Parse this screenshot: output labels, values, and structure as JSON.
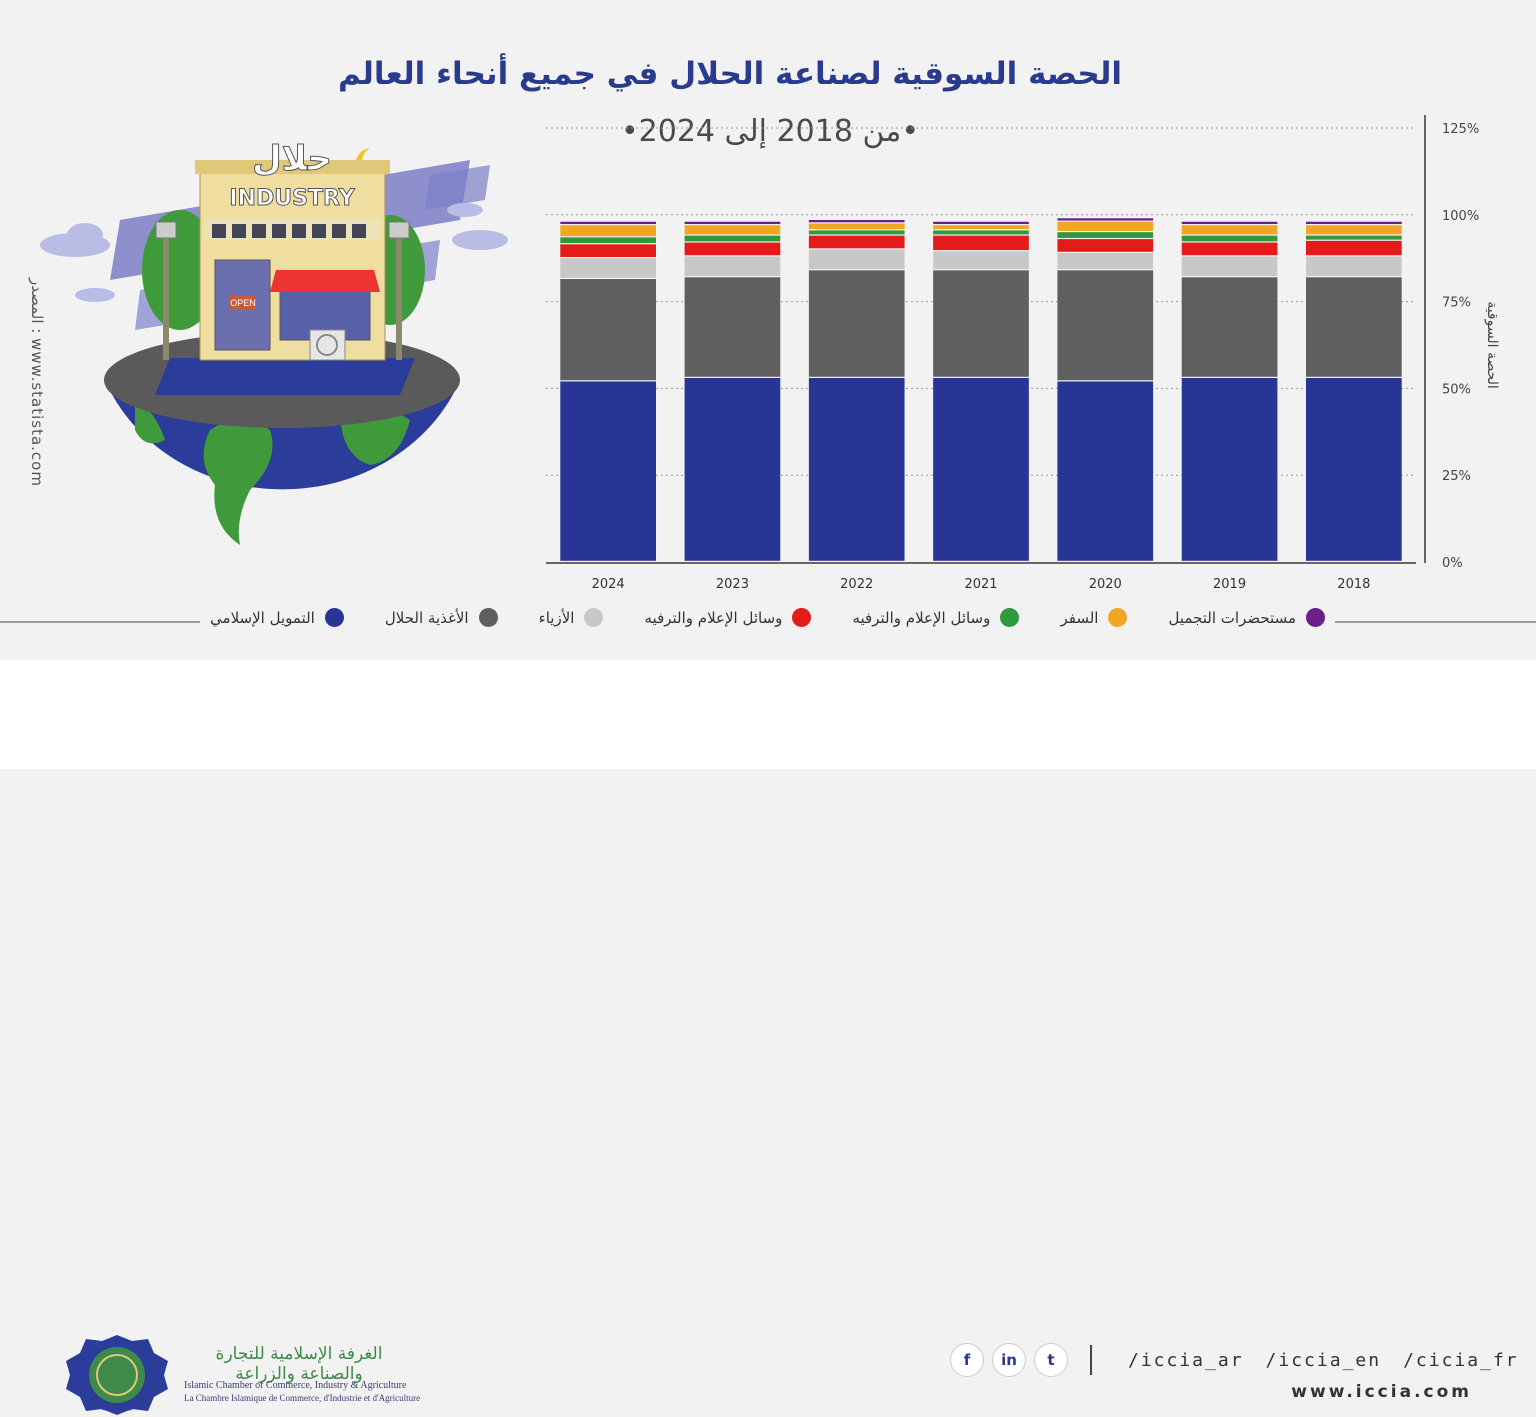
{
  "header": {
    "title": "الحصة السوقية لصناعة الحلال في جميع أنحاء العالم",
    "subtitle": "•من 2018 إلى 2024•"
  },
  "source_label": "المصدر : www.statista.com",
  "illustration": {
    "sign_ar": "حلال",
    "sign_en": "INDUSTRY",
    "open_sign": "OPEN"
  },
  "chart_data": {
    "type": "bar",
    "stacked": true,
    "categories": [
      "2024",
      "2023",
      "2022",
      "2021",
      "2020",
      "2019",
      "2018"
    ],
    "ylabel": "الحصة السوقية",
    "ylim": [
      0,
      125
    ],
    "yticks": [
      "0%",
      "25%",
      "50%",
      "75%",
      "100%",
      "125%"
    ],
    "grid": true,
    "legend_position": "bottom",
    "series": [
      {
        "name": "التمويل الإسلامي",
        "color": "#283593",
        "values": [
          52,
          53,
          53,
          53,
          52,
          53,
          53
        ]
      },
      {
        "name": "الأغذية الحلال",
        "color": "#5f5f5f",
        "values": [
          29.5,
          29,
          31,
          31,
          32,
          29,
          29
        ]
      },
      {
        "name": "الأزياء",
        "color": "#c8c8c8",
        "values": [
          6,
          6,
          6,
          5.5,
          5,
          6,
          6
        ]
      },
      {
        "name": "وسائل الإعلام والترفيه",
        "color": "#e31b1b",
        "values": [
          4,
          4,
          4,
          4.5,
          4,
          4,
          4.5
        ]
      },
      {
        "name": "وسائل الإعلام والترفيه",
        "color": "#2f9a3c",
        "values": [
          2,
          2,
          1.5,
          1.5,
          2,
          2,
          1.5
        ]
      },
      {
        "name": "السفر",
        "color": "#f2a624",
        "values": [
          3.5,
          3,
          2,
          1.5,
          3,
          3,
          3
        ]
      },
      {
        "name": "مستحضرات التجميل",
        "color": "#6a1f8a",
        "values": [
          1,
          1,
          1,
          1,
          1,
          1,
          1
        ]
      }
    ]
  },
  "footer": {
    "org_name_ar": "الغرفة الإسلامية للتجارة والصناعة والزراعة",
    "org_name_en": "Islamic Chamber of Commerce, Industry & Agriculture",
    "org_name_fr": "La Chambre Islamique de Commerce, d'Industrie et d'Agriculture",
    "social_icons": [
      "facebook-icon",
      "linkedin-icon",
      "twitter-icon"
    ],
    "social_glyphs": {
      "facebook": "f",
      "linkedin": "in",
      "twitter": "t"
    },
    "handles": [
      "/iccia_ar",
      "/iccia_en",
      "/cicia_fr"
    ],
    "website": "www.iccia.com"
  }
}
